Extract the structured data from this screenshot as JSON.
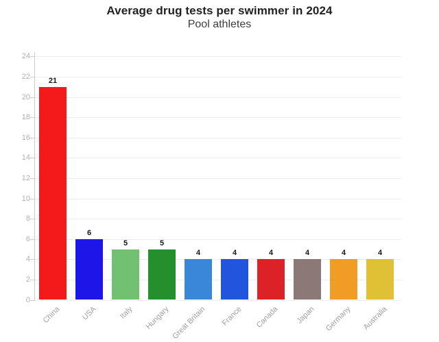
{
  "header": {
    "title": "Average drug tests per swimmer in 2024",
    "subtitle": "Pool athletes"
  },
  "chart_data": {
    "type": "bar",
    "title": "Average drug tests per swimmer in 2024",
    "subtitle": "Pool athletes",
    "categories": [
      "China",
      "USA",
      "Italy",
      "Hungary",
      "Great Britain",
      "France",
      "Canada",
      "Japan",
      "Germany",
      "Australia"
    ],
    "values": [
      21,
      6,
      5,
      5,
      4,
      4,
      4,
      4,
      4,
      4
    ],
    "bar_colors": [
      "#f41a1c",
      "#1e16e6",
      "#72c071",
      "#248f2c",
      "#3a87d9",
      "#2255dd",
      "#dc2127",
      "#8c7877",
      "#f19c25",
      "#e0c136"
    ],
    "xlabel": "",
    "ylabel": "",
    "ylim": [
      0,
      24
    ],
    "y_ticks": [
      0,
      2,
      4,
      6,
      8,
      10,
      12,
      14,
      16,
      18,
      20,
      22,
      24
    ],
    "grid": "horizontal",
    "legend": "none",
    "colors": {
      "gridline": "#ededed",
      "axis_line": "#cccccc",
      "tick_label": "#b3b0ad",
      "category_label": "#a3a09e",
      "value_label": "#161616",
      "title": "#222222",
      "subtitle": "#3d3d3d",
      "background": "#ffffff"
    }
  }
}
